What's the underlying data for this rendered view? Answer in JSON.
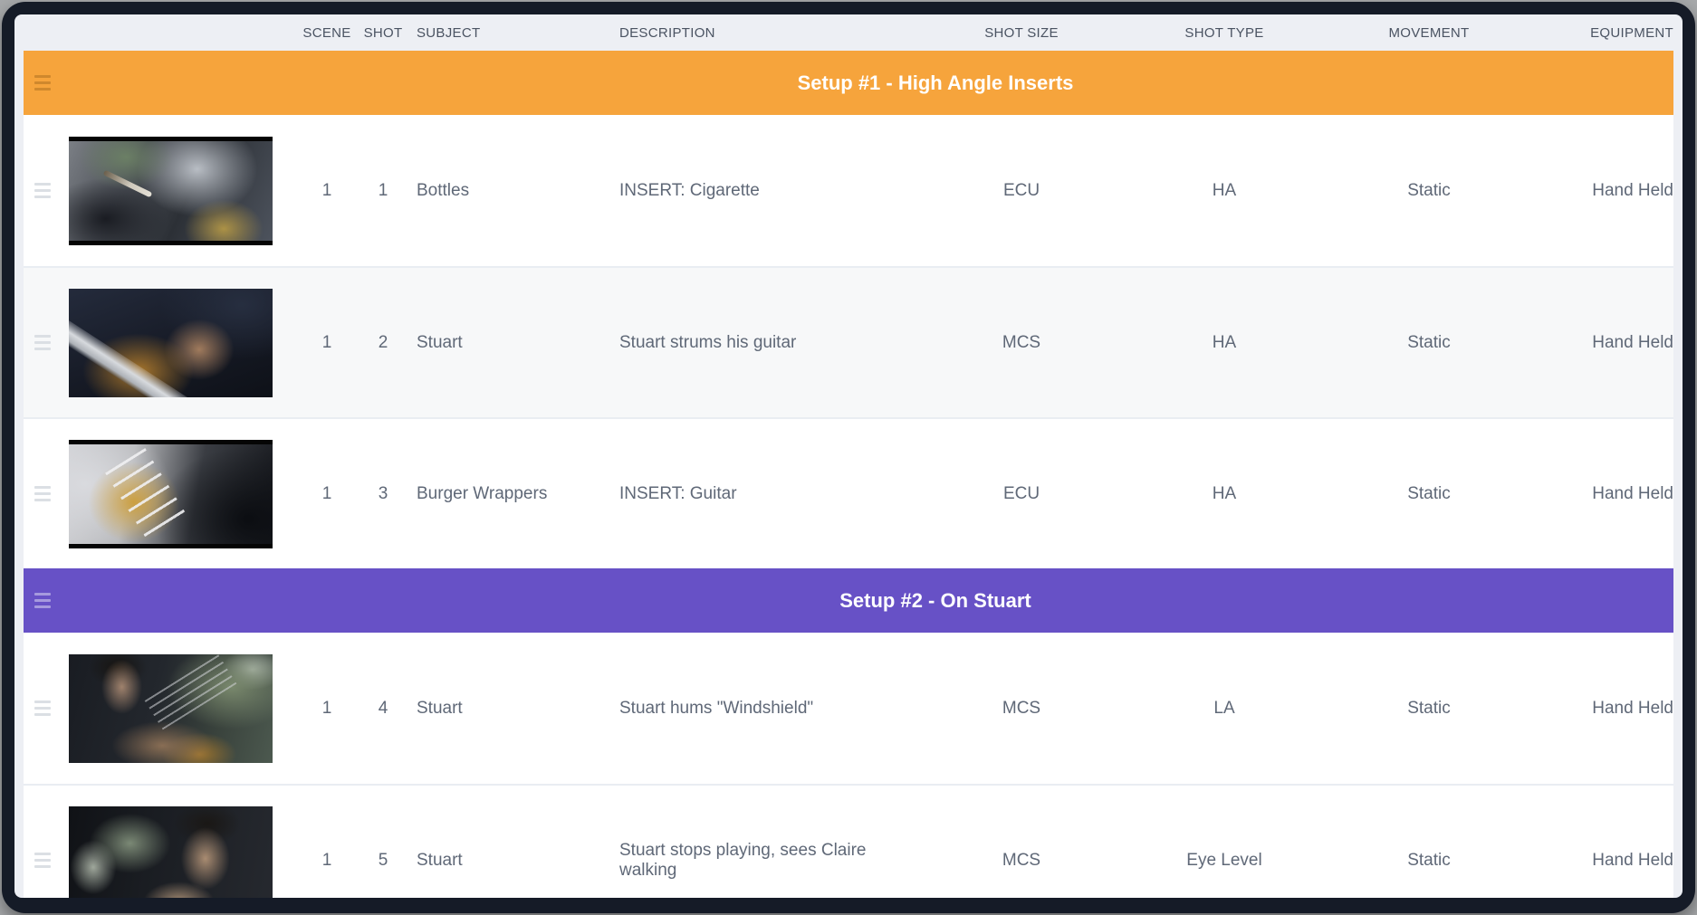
{
  "table": {
    "columns": [
      "SCENE",
      "SHOT",
      "SUBJECT",
      "DESCRIPTION",
      "SHOT SIZE",
      "SHOT TYPE",
      "MOVEMENT",
      "EQUIPMENT"
    ]
  },
  "setups": [
    {
      "title": "Setup #1 - High Angle Inserts",
      "color": "#F6A43C",
      "shots": [
        {
          "scene": "1",
          "shot": "1",
          "subject": "Bottles",
          "description": "INSERT: Cigarette",
          "shot_size": "ECU",
          "shot_type": "HA",
          "movement": "Static",
          "equipment": "Hand Held",
          "thumbnail": "close-up of cigarette held in hand, blurred car interior"
        },
        {
          "scene": "1",
          "shot": "2",
          "subject": "Stuart",
          "description": "Stuart strums his guitar",
          "shot_size": "MCS",
          "shot_type": "HA",
          "movement": "Static",
          "equipment": "Hand Held",
          "thumbnail": "hand strumming acoustic guitar in dark interior"
        },
        {
          "scene": "1",
          "shot": "3",
          "subject": "Burger Wrappers",
          "description": "INSERT: Guitar",
          "shot_size": "ECU",
          "shot_type": "HA",
          "movement": "Static",
          "equipment": "Hand Held",
          "thumbnail": "extreme close-up of fingers on guitar strings"
        }
      ]
    },
    {
      "title": "Setup #2 - On Stuart",
      "color": "#6751C6",
      "shots": [
        {
          "scene": "1",
          "shot": "4",
          "subject": "Stuart",
          "description": "Stuart hums \"Windshield\"",
          "shot_size": "MCS",
          "shot_type": "LA",
          "movement": "Static",
          "equipment": "Hand Held",
          "thumbnail": "Stuart playing guitar in car, foliage through window"
        },
        {
          "scene": "1",
          "shot": "5",
          "subject": "Stuart",
          "description": "Stuart stops playing, sees Claire walking",
          "shot_size": "MCS",
          "shot_type": "Eye Level",
          "movement": "Static",
          "equipment": "Hand Held",
          "thumbnail": "Stuart in car looking out, hand near face"
        }
      ]
    }
  ]
}
